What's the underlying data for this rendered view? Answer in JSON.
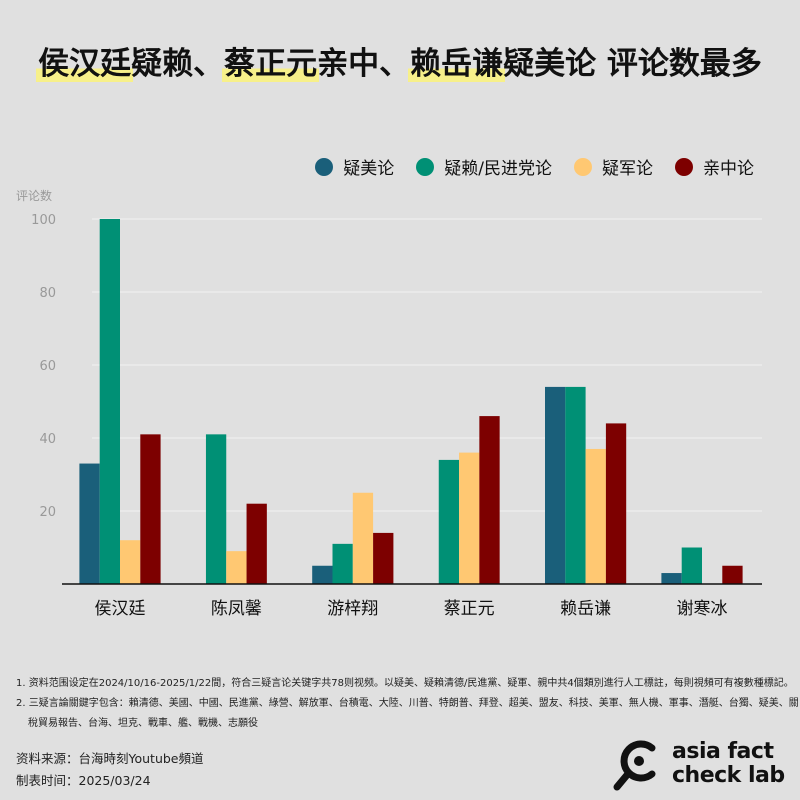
{
  "title_parts": [
    {
      "text": "侯汉廷",
      "highlight": true
    },
    {
      "text": "疑赖、",
      "highlight": false
    },
    {
      "text": "蔡正元",
      "highlight": true
    },
    {
      "text": "亲中、",
      "highlight": false
    },
    {
      "text": "赖岳谦",
      "highlight": true
    },
    {
      "text": "疑美论 评论数最多",
      "highlight": false
    }
  ],
  "chart_data": {
    "type": "bar",
    "title": "侯汉廷疑赖、蔡正元亲中、赖岳谦疑美论 评论数最多",
    "ylabel": "评论数",
    "xlabel": "",
    "ylim": [
      0,
      100
    ],
    "yticks": [
      20,
      40,
      60,
      80,
      100
    ],
    "grid": true,
    "legend_position": "top-right",
    "categories": [
      "侯汉廷",
      "陈凤馨",
      "游梓翔",
      "蔡正元",
      "赖岳谦",
      "谢寒冰"
    ],
    "series": [
      {
        "name": "疑美论",
        "color": "#1a5f7a",
        "values": [
          33,
          null,
          5,
          null,
          54,
          3
        ]
      },
      {
        "name": "疑赖/民进党论",
        "color": "#009075",
        "values": [
          100,
          41,
          11,
          34,
          54,
          10
        ]
      },
      {
        "name": "疑军论",
        "color": "#ffc872",
        "values": [
          12,
          9,
          25,
          36,
          37,
          0
        ]
      },
      {
        "name": "亲中论",
        "color": "#7d0000",
        "values": [
          41,
          22,
          14,
          46,
          44,
          5
        ]
      }
    ]
  },
  "notes": [
    "1. 资料范围设定在2024/10/16-2025/1/22間，符合三疑言论关键字共78则视频。以疑美、疑賴清德/民進黨、疑軍、親中共4個類別進行人工標註，每則視頻可有複數種標記。",
    "2. 三疑言論關鍵字包含：賴清德、美國、中國、民進黨、綠營、解放軍、台積電、大陸、川普、特朗普、拜登、超美、盟友、科技、美軍、無人機、軍事、潛艇、台獨、疑美、關",
    "稅貿易報告、台海、坦克、戰車、艦、戰機、志願役"
  ],
  "source": "资料来源：台海時刻Youtube頻道",
  "date": "制表时间：2025/03/24",
  "logo": {
    "line1": "asia fact",
    "line2": "check lab",
    "icon": "magnifier-logo-icon"
  }
}
